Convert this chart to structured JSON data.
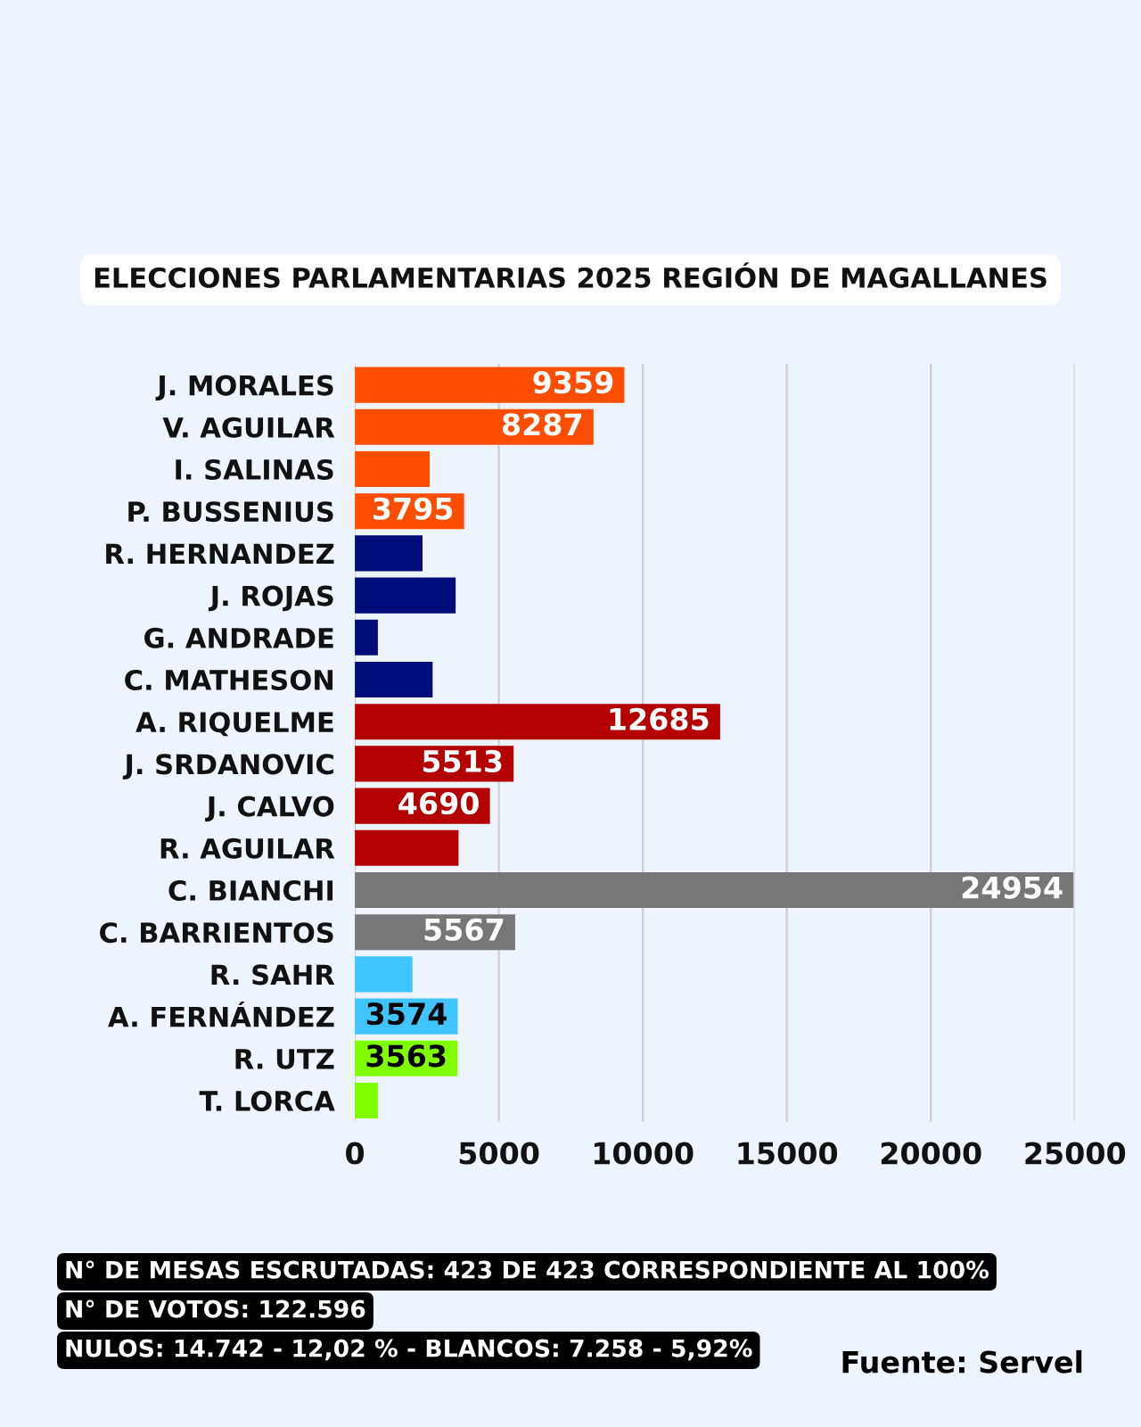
{
  "chart_data": {
    "type": "bar",
    "orientation": "horizontal",
    "title": "ELECCIONES PARLAMENTARIAS 2025 REGIÓN DE MAGALLANES",
    "categories": [
      "J. MORALES",
      "V. AGUILAR",
      "I. SALINAS",
      "P. BUSSENIUS",
      "R. HERNANDEZ",
      "J. ROJAS",
      "G. ANDRADE",
      "C. MATHESON",
      "A. RIQUELME",
      "J. SRDANOVIC",
      "J. CALVO",
      "R. AGUILAR",
      "C. BIANCHI",
      "C. BARRIENTOS",
      "R. SAHR",
      "A. FERNÁNDEZ",
      "R. UTZ",
      "T. LORCA"
    ],
    "values": [
      9359,
      8287,
      2600,
      3795,
      2350,
      3500,
      800,
      2700,
      12685,
      5513,
      4690,
      3600,
      24954,
      5567,
      2000,
      3574,
      3563,
      800
    ],
    "colors": [
      "#ff4d00",
      "#ff4d00",
      "#ff4d00",
      "#ff4d00",
      "#000c7a",
      "#000c7a",
      "#000c7a",
      "#000c7a",
      "#b50000",
      "#b50000",
      "#b50000",
      "#b50000",
      "#777777",
      "#777777",
      "#40c4ff",
      "#40c4ff",
      "#7fff00",
      "#7fff00"
    ],
    "value_labels": [
      "9359",
      "8287",
      null,
      "3795",
      null,
      null,
      null,
      null,
      "12685",
      "5513",
      "4690",
      null,
      "24954",
      "5567",
      null,
      "3574",
      "3563",
      null
    ],
    "xlim": [
      0,
      25000
    ],
    "xticks": [
      0,
      5000,
      10000,
      15000,
      20000,
      25000
    ],
    "grid": "x",
    "annotations": [
      "N° DE MESAS ESCRUTADAS: 423 DE 423 CORRESPONDIENTE AL 100%",
      "N° DE VOTOS: 122.596",
      "NULOS: 14.742 - 12,02 % - BLANCOS: 7.258 - 5,92%",
      "Fuente: Servel"
    ]
  }
}
